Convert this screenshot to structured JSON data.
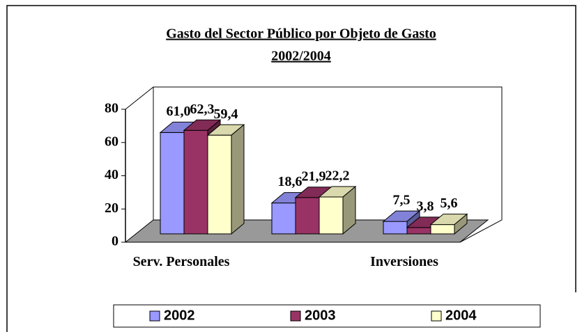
{
  "chart_data": {
    "type": "bar3d",
    "title": "Gasto del Sector Público por Objeto de Gasto",
    "subtitle": "2002/2004",
    "categories": [
      "Serv. Personales",
      null,
      "Inversiones"
    ],
    "series": [
      {
        "name": "2002",
        "color": "#9999ff",
        "values": [
          61.0,
          18.6,
          7.5
        ],
        "value_labels": [
          "61,0",
          "18,6",
          "7,5"
        ]
      },
      {
        "name": "2003",
        "color": "#993366",
        "values": [
          62.3,
          21.9,
          3.8
        ],
        "value_labels": [
          "62,3",
          "21,9",
          "3,8"
        ]
      },
      {
        "name": "2004",
        "color": "#ffffcc",
        "values": [
          59.4,
          22.2,
          5.6
        ],
        "value_labels": [
          "59,4",
          "22,2",
          "5,6"
        ]
      }
    ],
    "ylim": [
      0,
      80
    ],
    "yticks": [
      0,
      20,
      40,
      60,
      80
    ],
    "legend": "bottom"
  }
}
